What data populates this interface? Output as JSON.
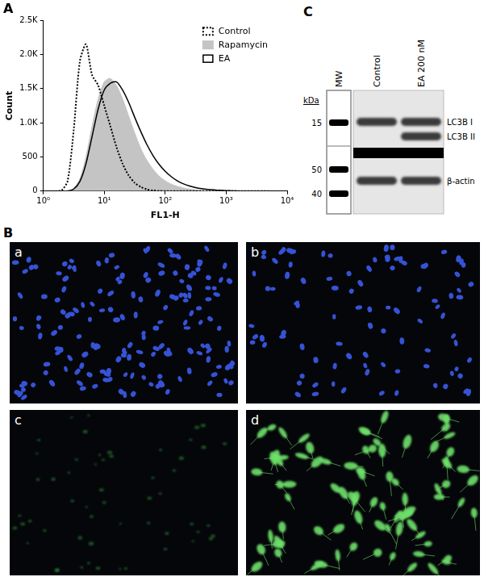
{
  "chart_data": {
    "type": "line",
    "title": "A",
    "x_label": "FL1-H",
    "y_label": "Count",
    "x": [
      1.58,
      2,
      2.51,
      3.16,
      3.98,
      5.01,
      6.31,
      7.94,
      10,
      12.6,
      15.8,
      20,
      25.1,
      31.6,
      39.8,
      50.1,
      63.1,
      79.4,
      100,
      126,
      158,
      200,
      251,
      316,
      398,
      501,
      631,
      794,
      1000,
      1259,
      1585,
      1995,
      2512,
      3162,
      3981,
      5012
    ],
    "series": [
      {
        "name": "Control",
        "color": "#000000",
        "line_style": "dotted",
        "values": [
          0,
          10,
          150,
          900,
          1900,
          2150,
          1700,
          1550,
          1250,
          950,
          650,
          400,
          230,
          120,
          60,
          25,
          10,
          3,
          0,
          0,
          0,
          0,
          0,
          0,
          0,
          0,
          0,
          0,
          0,
          0,
          0,
          0,
          0,
          0,
          0,
          0
        ]
      },
      {
        "name": "Rapamycin",
        "color": "#c4c4c4",
        "type": "area",
        "values": [
          0,
          0,
          5,
          40,
          180,
          500,
          950,
          1350,
          1600,
          1650,
          1550,
          1350,
          1100,
          850,
          620,
          450,
          320,
          220,
          150,
          100,
          70,
          45,
          30,
          18,
          10,
          6,
          3,
          1,
          0,
          0,
          0,
          0,
          0,
          0,
          0,
          0
        ]
      },
      {
        "name": "EA",
        "color": "#000000",
        "line_style": "solid",
        "values": [
          0,
          0,
          3,
          30,
          140,
          400,
          800,
          1200,
          1480,
          1580,
          1600,
          1480,
          1300,
          1080,
          870,
          680,
          520,
          390,
          290,
          210,
          150,
          105,
          75,
          52,
          36,
          25,
          17,
          11,
          7,
          4,
          2,
          1,
          0,
          0,
          0,
          0
        ]
      }
    ],
    "log": "x",
    "xlim": [
      1,
      10000
    ],
    "xticks": [
      {
        "value": 1,
        "label": "10⁰"
      },
      {
        "value": 10,
        "label": "10¹"
      },
      {
        "value": 100,
        "label": "10²"
      },
      {
        "value": 1000,
        "label": "10³"
      },
      {
        "value": 10000,
        "label": "10⁴"
      }
    ],
    "ylim": [
      0,
      2500
    ],
    "yticks": [
      0,
      500,
      {
        "value": 1000,
        "label": "1.0K"
      },
      {
        "value": 1500,
        "label": "1.5K"
      },
      {
        "value": 2000,
        "label": "2.0K"
      },
      {
        "value": 2500,
        "label": "2.5K"
      }
    ],
    "grid": false,
    "legend": "upper right"
  },
  "images": {
    "title": "B",
    "tiles": [
      {
        "label": "a",
        "color": "#3553d6"
      },
      {
        "label": "b",
        "color": "#3553d6"
      },
      {
        "label": "c",
        "color": "#2f8a34"
      },
      {
        "label": "d",
        "color": "#6ee06a"
      }
    ]
  },
  "blot": {
    "title": "C",
    "unit": "kDa",
    "lanes": [
      "MW",
      "Control",
      "EA 200 nM"
    ],
    "markers": [
      15,
      50,
      40
    ],
    "bands": [
      "LC3B I",
      "LC3B II",
      "β-actin"
    ]
  }
}
